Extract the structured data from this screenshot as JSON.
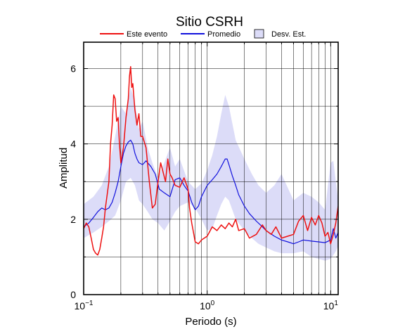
{
  "chart_data": {
    "type": "line",
    "title": "Sitio CSRH",
    "xlabel": "Periodo (s)",
    "ylabel": "Amplitud",
    "xscale": "log",
    "xlim": [
      0.1,
      11.5
    ],
    "ylim": [
      0,
      6.7
    ],
    "grid": true,
    "legend_position": "top",
    "x_ticks": [
      {
        "value": 0.1,
        "base": "10",
        "exp": "−1"
      },
      {
        "value": 1,
        "base": "10",
        "exp": "0"
      },
      {
        "value": 10,
        "base": "10",
        "exp": "1"
      }
    ],
    "y_ticks": [
      0,
      2,
      4,
      6
    ],
    "legend": [
      {
        "name": "Este evento",
        "kind": "line",
        "color": "#ee1111"
      },
      {
        "name": "Promedio",
        "kind": "line",
        "color": "#1111dd"
      },
      {
        "name": "Desv. Est.",
        "kind": "box",
        "color": "#dcdcf8"
      }
    ],
    "band": {
      "name": "Desv. Est.",
      "color": "#dcdcf8",
      "x": [
        0.1,
        0.12,
        0.14,
        0.16,
        0.18,
        0.2,
        0.22,
        0.24,
        0.26,
        0.28,
        0.3,
        0.33,
        0.36,
        0.4,
        0.45,
        0.5,
        0.55,
        0.6,
        0.7,
        0.8,
        0.9,
        1.0,
        1.1,
        1.2,
        1.3,
        1.4,
        1.5,
        1.7,
        2.0,
        2.3,
        2.6,
        3.0,
        3.5,
        4.0,
        5.0,
        6.0,
        7.0,
        8.0,
        9.0,
        10.0,
        10.5,
        11.0,
        11.5
      ],
      "upper": [
        2.4,
        2.6,
        2.9,
        3.4,
        4.2,
        5.0,
        4.8,
        5.5,
        5.1,
        4.4,
        4.6,
        3.9,
        3.5,
        3.1,
        3.5,
        3.9,
        3.4,
        3.6,
        3.0,
        2.8,
        2.95,
        3.3,
        3.7,
        4.2,
        4.8,
        5.3,
        5.0,
        4.1,
        3.6,
        3.2,
        2.9,
        2.7,
        2.9,
        3.2,
        2.5,
        2.7,
        2.6,
        2.45,
        2.25,
        3.5,
        3.55,
        3.0,
        2.5
      ],
      "lower": [
        1.5,
        1.65,
        1.8,
        1.95,
        2.1,
        2.5,
        3.0,
        3.1,
        2.9,
        2.5,
        2.4,
        2.2,
        2.0,
        1.9,
        1.7,
        1.95,
        2.2,
        2.35,
        2.45,
        2.3,
        2.0,
        1.7,
        1.75,
        2.1,
        2.4,
        2.6,
        2.5,
        2.0,
        1.7,
        1.5,
        1.35,
        1.25,
        1.15,
        1.1,
        1.1,
        1.15,
        1.0,
        0.95,
        0.9,
        0.95,
        1.05,
        1.15,
        1.3
      ]
    },
    "series": [
      {
        "name": "Promedio",
        "color": "#1111dd",
        "x": [
          0.1,
          0.11,
          0.12,
          0.13,
          0.14,
          0.15,
          0.16,
          0.17,
          0.18,
          0.19,
          0.2,
          0.21,
          0.22,
          0.23,
          0.24,
          0.25,
          0.26,
          0.27,
          0.28,
          0.3,
          0.32,
          0.35,
          0.38,
          0.41,
          0.45,
          0.5,
          0.55,
          0.6,
          0.65,
          0.7,
          0.75,
          0.8,
          0.85,
          0.9,
          1.0,
          1.1,
          1.2,
          1.3,
          1.4,
          1.45,
          1.5,
          1.6,
          1.7,
          1.8,
          2.0,
          2.2,
          2.5,
          2.8,
          3.0,
          3.5,
          4.0,
          4.5,
          5.0,
          5.5,
          6.0,
          7.0,
          8.0,
          9.0,
          10.0,
          10.5,
          11.0,
          11.5
        ],
        "y": [
          1.8,
          1.9,
          2.05,
          2.2,
          2.3,
          2.25,
          2.3,
          2.45,
          2.7,
          3.0,
          3.4,
          3.75,
          3.95,
          4.05,
          4.1,
          4.0,
          3.75,
          3.6,
          3.5,
          3.45,
          3.55,
          3.4,
          3.2,
          2.8,
          2.7,
          2.6,
          3.05,
          3.1,
          2.9,
          2.75,
          2.45,
          2.25,
          2.35,
          2.6,
          2.9,
          3.05,
          3.2,
          3.4,
          3.6,
          3.6,
          3.45,
          3.15,
          2.9,
          2.65,
          2.35,
          2.15,
          1.95,
          1.8,
          1.7,
          1.55,
          1.45,
          1.4,
          1.35,
          1.4,
          1.45,
          1.42,
          1.4,
          1.38,
          1.45,
          1.75,
          1.5,
          1.65
        ]
      },
      {
        "name": "Este evento",
        "color": "#ee1111",
        "x": [
          0.1,
          0.105,
          0.11,
          0.115,
          0.12,
          0.125,
          0.13,
          0.135,
          0.14,
          0.145,
          0.15,
          0.16,
          0.165,
          0.17,
          0.175,
          0.18,
          0.185,
          0.19,
          0.195,
          0.2,
          0.21,
          0.22,
          0.23,
          0.235,
          0.24,
          0.245,
          0.25,
          0.26,
          0.27,
          0.28,
          0.29,
          0.3,
          0.32,
          0.34,
          0.36,
          0.38,
          0.4,
          0.42,
          0.44,
          0.46,
          0.48,
          0.5,
          0.52,
          0.55,
          0.6,
          0.65,
          0.7,
          0.72,
          0.75,
          0.78,
          0.8,
          0.85,
          0.9,
          1.0,
          1.1,
          1.2,
          1.3,
          1.4,
          1.5,
          1.6,
          1.7,
          1.8,
          2.0,
          2.2,
          2.5,
          2.8,
          3.0,
          3.3,
          3.6,
          4.0,
          4.5,
          5.0,
          5.5,
          6.0,
          6.5,
          7.0,
          7.5,
          8.0,
          8.5,
          9.0,
          9.5,
          10.0,
          10.5,
          11.0,
          11.5
        ],
        "y": [
          1.75,
          1.9,
          1.8,
          1.5,
          1.2,
          1.1,
          1.05,
          1.2,
          1.5,
          1.8,
          2.3,
          3.0,
          4.0,
          4.5,
          5.3,
          5.2,
          4.6,
          4.7,
          4.0,
          3.5,
          3.9,
          4.7,
          5.2,
          5.8,
          6.05,
          5.5,
          5.6,
          4.9,
          4.5,
          4.8,
          4.2,
          4.2,
          3.9,
          3.0,
          2.3,
          2.4,
          3.0,
          3.5,
          3.25,
          3.0,
          3.6,
          3.2,
          3.1,
          2.9,
          2.85,
          3.1,
          2.8,
          2.3,
          1.9,
          1.6,
          1.4,
          1.35,
          1.45,
          1.55,
          1.8,
          1.7,
          1.85,
          1.75,
          1.9,
          1.8,
          2.0,
          1.7,
          1.75,
          1.5,
          1.6,
          1.85,
          1.7,
          1.6,
          1.8,
          1.5,
          1.55,
          1.6,
          1.95,
          2.1,
          1.7,
          2.05,
          1.85,
          2.1,
          1.9,
          1.55,
          1.65,
          1.35,
          1.6,
          1.9,
          2.35
        ]
      }
    ]
  }
}
